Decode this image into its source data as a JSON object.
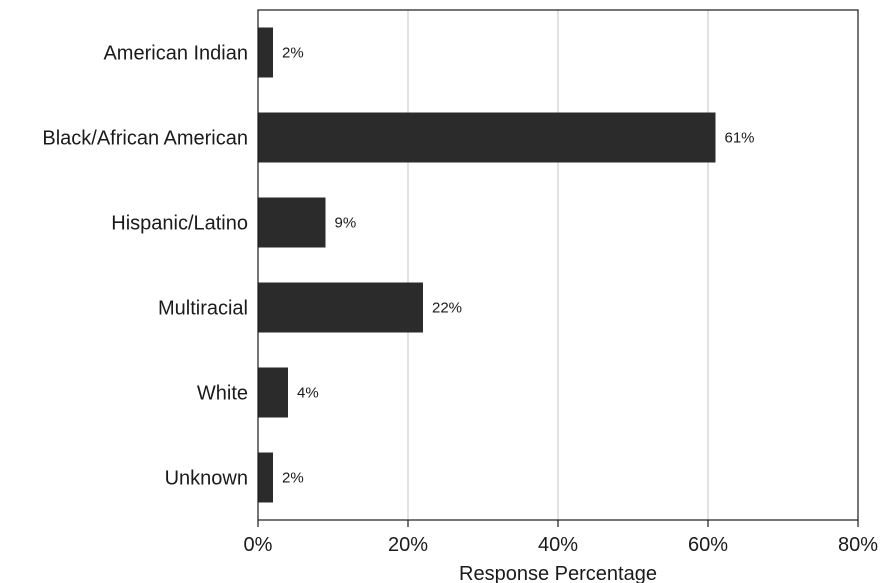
{
  "chart_data": {
    "type": "bar",
    "orientation": "horizontal",
    "title": "",
    "xlabel": "Response Percentage",
    "ylabel": "",
    "categories": [
      "American Indian",
      "Black/African American",
      "Hispanic/Latino",
      "Multiracial",
      "White",
      "Unknown"
    ],
    "values": [
      2,
      61,
      9,
      22,
      4,
      2
    ],
    "data_labels": [
      "2%",
      "61%",
      "9%",
      "22%",
      "4%",
      "2%"
    ],
    "xlim": [
      0,
      80
    ],
    "xticks": [
      0,
      20,
      40,
      60,
      80
    ],
    "xtick_labels": [
      "0%",
      "20%",
      "40%",
      "60%",
      "80%"
    ],
    "grid": "vertical",
    "bar_color": "#2b2b2b",
    "grid_color": "#d9d9d9",
    "axis_color": "#1a1a1a"
  }
}
